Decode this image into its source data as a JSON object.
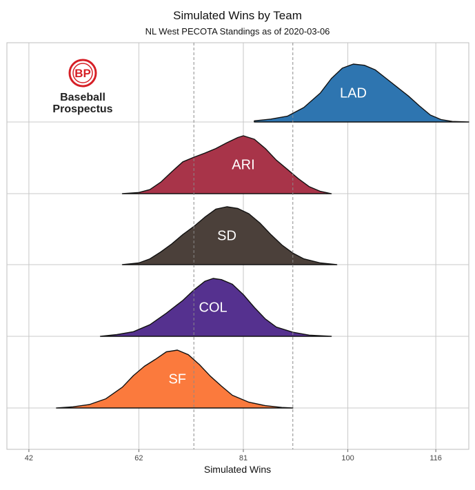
{
  "chart_data": {
    "type": "ridgeline",
    "title": "Simulated Wins by Team",
    "subtitle": "NL West PECOTA Standings as of 2020-03-06",
    "xlabel": "Simulated Wins",
    "ylabel": "",
    "xlim": [
      38,
      122
    ],
    "x_ticks": [
      42,
      62,
      81,
      100,
      116
    ],
    "reference_lines": [
      72,
      90
    ],
    "grid": true,
    "series": [
      {
        "name": "LAD",
        "color": "#2e75b0",
        "points": [
          [
            83,
            0.02
          ],
          [
            86,
            0.05
          ],
          [
            89,
            0.1
          ],
          [
            92,
            0.25
          ],
          [
            95,
            0.5
          ],
          [
            97,
            0.75
          ],
          [
            99,
            0.93
          ],
          [
            101,
            1.0
          ],
          [
            103,
            0.98
          ],
          [
            105,
            0.9
          ],
          [
            107,
            0.75
          ],
          [
            109,
            0.6
          ],
          [
            111,
            0.45
          ],
          [
            113,
            0.28
          ],
          [
            115,
            0.12
          ],
          [
            117,
            0.04
          ],
          [
            119,
            0.01
          ],
          [
            122,
            0.0
          ]
        ]
      },
      {
        "name": "ARI",
        "color": "#a83449",
        "points": [
          [
            59,
            0.0
          ],
          [
            62,
            0.02
          ],
          [
            64,
            0.07
          ],
          [
            66,
            0.2
          ],
          [
            68,
            0.38
          ],
          [
            70,
            0.55
          ],
          [
            72,
            0.63
          ],
          [
            74,
            0.7
          ],
          [
            76,
            0.78
          ],
          [
            78,
            0.88
          ],
          [
            80,
            0.97
          ],
          [
            81,
            1.0
          ],
          [
            83,
            0.94
          ],
          [
            85,
            0.78
          ],
          [
            87,
            0.58
          ],
          [
            89,
            0.42
          ],
          [
            91,
            0.26
          ],
          [
            93,
            0.12
          ],
          [
            95,
            0.04
          ],
          [
            97,
            0.0
          ]
        ]
      },
      {
        "name": "SD",
        "color": "#4b403a",
        "points": [
          [
            59,
            0.0
          ],
          [
            62,
            0.03
          ],
          [
            64,
            0.1
          ],
          [
            66,
            0.22
          ],
          [
            68,
            0.36
          ],
          [
            70,
            0.52
          ],
          [
            72,
            0.66
          ],
          [
            74,
            0.82
          ],
          [
            76,
            0.96
          ],
          [
            78,
            1.0
          ],
          [
            80,
            0.97
          ],
          [
            82,
            0.88
          ],
          [
            84,
            0.72
          ],
          [
            86,
            0.52
          ],
          [
            88,
            0.34
          ],
          [
            90,
            0.2
          ],
          [
            92,
            0.1
          ],
          [
            95,
            0.03
          ],
          [
            98,
            0.0
          ]
        ]
      },
      {
        "name": "COL",
        "color": "#55318f",
        "points": [
          [
            55,
            0.0
          ],
          [
            58,
            0.03
          ],
          [
            61,
            0.08
          ],
          [
            64,
            0.2
          ],
          [
            67,
            0.4
          ],
          [
            70,
            0.62
          ],
          [
            72,
            0.8
          ],
          [
            74,
            0.95
          ],
          [
            75.5,
            1.0
          ],
          [
            77,
            0.98
          ],
          [
            79,
            0.9
          ],
          [
            81,
            0.72
          ],
          [
            83,
            0.5
          ],
          [
            85,
            0.3
          ],
          [
            87,
            0.16
          ],
          [
            90,
            0.07
          ],
          [
            93,
            0.02
          ],
          [
            97,
            0.0
          ]
        ]
      },
      {
        "name": "SF",
        "color": "#fb7a3d",
        "points": [
          [
            47,
            0.0
          ],
          [
            50,
            0.02
          ],
          [
            53,
            0.06
          ],
          [
            56,
            0.16
          ],
          [
            59,
            0.36
          ],
          [
            61,
            0.56
          ],
          [
            63,
            0.72
          ],
          [
            65,
            0.84
          ],
          [
            67,
            0.97
          ],
          [
            69,
            1.0
          ],
          [
            71,
            0.92
          ],
          [
            73,
            0.75
          ],
          [
            75,
            0.55
          ],
          [
            77,
            0.38
          ],
          [
            79,
            0.22
          ],
          [
            82,
            0.1
          ],
          [
            85,
            0.04
          ],
          [
            88,
            0.01
          ],
          [
            90,
            0.0
          ]
        ]
      }
    ]
  },
  "logo": {
    "initials": "BP",
    "line1": "Baseball",
    "line2": "Prospectus"
  }
}
